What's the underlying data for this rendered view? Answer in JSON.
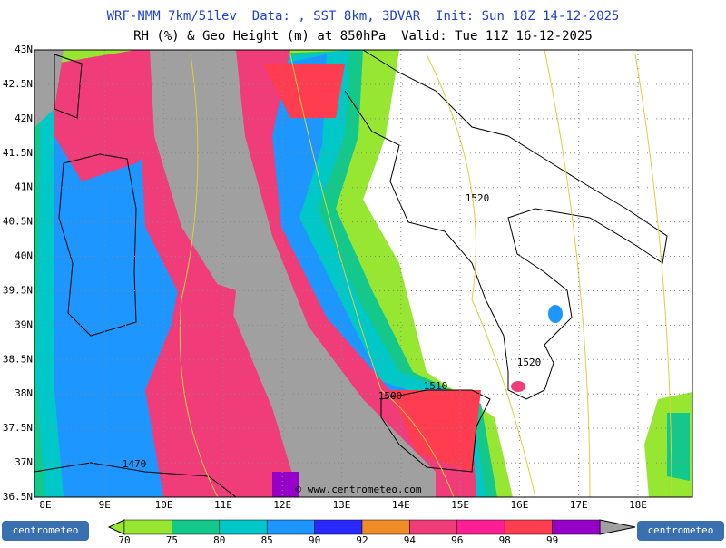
{
  "header": {
    "line1": "WRF-NMM 7km/51lev  Data: , SST 8km, 3DVAR  Init: Sun 18Z 14-12-2025",
    "line2": "RH (%) & Geo Height (m) at 850hPa  Valid: Tue 11Z 16-12-2025"
  },
  "map": {
    "lat_labels": [
      "43N",
      "42.5N",
      "42N",
      "41.5N",
      "41N",
      "40.5N",
      "40N",
      "39.5N",
      "39N",
      "38.5N",
      "38N",
      "37.5N",
      "37N",
      "36.5N"
    ],
    "lon_labels": [
      "8E",
      "9E",
      "10E",
      "11E",
      "12E",
      "13E",
      "14E",
      "15E",
      "16E",
      "17E",
      "18E"
    ],
    "contour_labels": [
      "1520",
      "1520",
      "1510",
      "1500",
      "1470"
    ],
    "watermark": "© www.centrometeo.com"
  },
  "colorbar": {
    "labels": [
      "70",
      "75",
      "80",
      "85",
      "90",
      "92",
      "94",
      "96",
      "98",
      "99"
    ],
    "colors": [
      "#96e632",
      "#14c88c",
      "#00c8c8",
      "#1e96ff",
      "#2828ff",
      "#f08c28",
      "#f03c78",
      "#ff1e96",
      "#ff3c50",
      "#9600c8"
    ]
  },
  "logos": {
    "left": "centrometeo",
    "right": "centrometeo"
  }
}
